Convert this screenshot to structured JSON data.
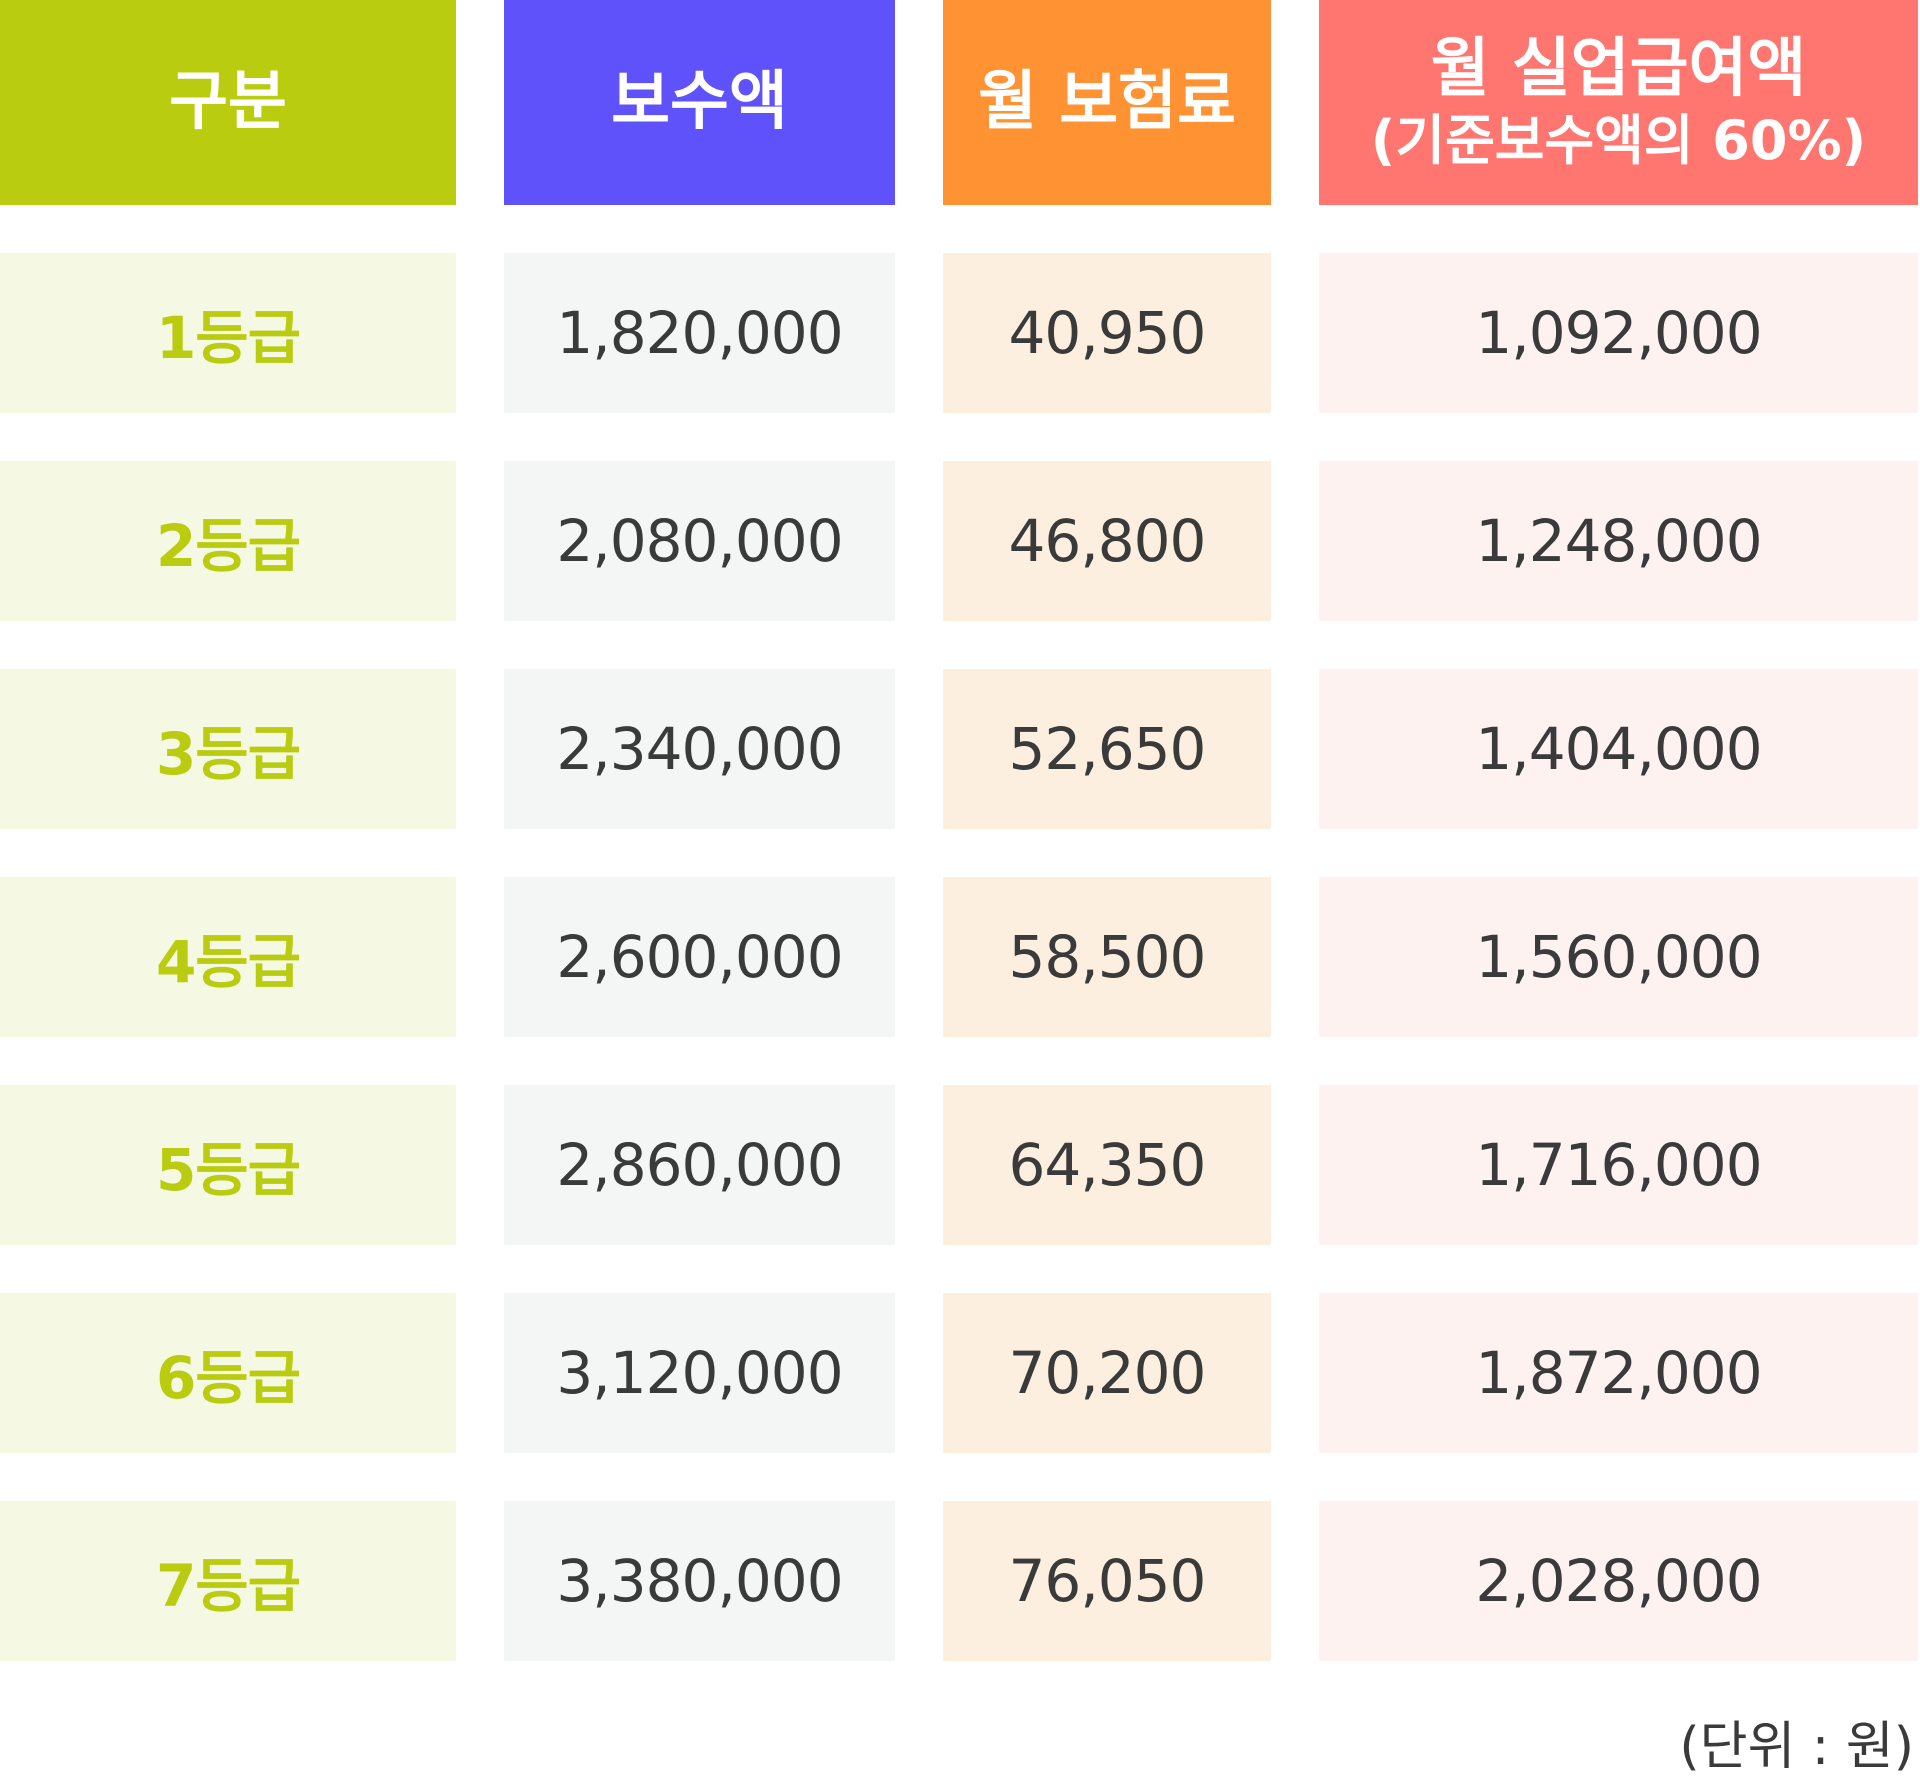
{
  "colors": {
    "grade_header": "#b9cc10",
    "salary_header": "#5f52fb",
    "premium_header": "#ff9233",
    "benefit_header": "#ff7670"
  },
  "headers": {
    "grade": "구분",
    "salary": "보수액",
    "premium": "월 보험료",
    "benefit_line1": "월 실업급여액",
    "benefit_line2": "(기준보수액의 60%)"
  },
  "rows": [
    {
      "grade": "1등급",
      "salary": "1,820,000",
      "premium": "40,950",
      "benefit": "1,092,000"
    },
    {
      "grade": "2등급",
      "salary": "2,080,000",
      "premium": "46,800",
      "benefit": "1,248,000"
    },
    {
      "grade": "3등급",
      "salary": "2,340,000",
      "premium": "52,650",
      "benefit": "1,404,000"
    },
    {
      "grade": "4등급",
      "salary": "2,600,000",
      "premium": "58,500",
      "benefit": "1,560,000"
    },
    {
      "grade": "5등급",
      "salary": "2,860,000",
      "premium": "64,350",
      "benefit": "1,716,000"
    },
    {
      "grade": "6등급",
      "salary": "3,120,000",
      "premium": "70,200",
      "benefit": "1,872,000"
    },
    {
      "grade": "7등급",
      "salary": "3,380,000",
      "premium": "76,050",
      "benefit": "2,028,000"
    }
  ],
  "unit_note": "(단위 : 원)"
}
